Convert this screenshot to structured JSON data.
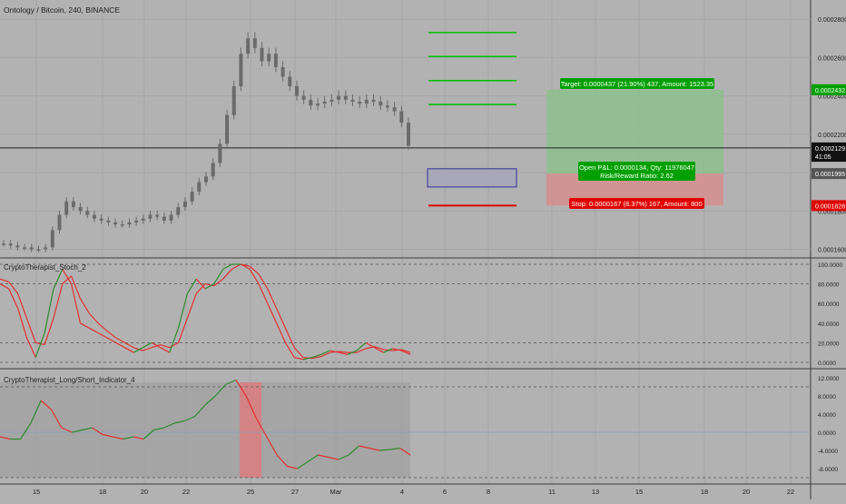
{
  "chart_title": "Ontology / Bitcoin, 240, BINANCE",
  "colors": {
    "background": "#b2b2b2",
    "grid": "#a6a6a6",
    "candle": "#6b6b6b",
    "green": "#00c000",
    "red": "#e00000",
    "stoch_green": "#2e8b2e",
    "stoch_red": "#e23030",
    "target_zone": "#8fbf8f",
    "stop_zone": "#d49090"
  },
  "price_axis": {
    "min": 0.000156,
    "max": 0.00029,
    "ticks": [
      "0.0002800",
      "0.0002600",
      "0.0002400",
      "0.0002200",
      "0.0002000",
      "0.0001800",
      "0.0001600"
    ],
    "tick_values": [
      0.00028,
      0.00026,
      0.00024,
      0.00022,
      0.0002,
      0.00018,
      0.00016
    ],
    "tags": [
      {
        "label": "0.0002432",
        "value": 0.0002432,
        "bg": "#00a000"
      },
      {
        "label": "0.0002129",
        "value": 0.0002129,
        "bg": "#111111"
      },
      {
        "label": "41:05",
        "value": 0.0002085,
        "bg": "#111111"
      },
      {
        "label": "0.0001995",
        "value": 0.0001995,
        "bg": "#555555"
      },
      {
        "label": "0.0001828",
        "value": 0.0001828,
        "bg": "#e00000"
      }
    ]
  },
  "x_axis": {
    "labels": [
      "15",
      "18",
      "20",
      "22",
      "25",
      "27",
      "Mar",
      "4",
      "6",
      "8",
      "11",
      "13",
      "15",
      "18",
      "20",
      "22"
    ]
  },
  "long_position": {
    "target_label": "Target: 0.0000437 (21.90%) 437, Amount: 1523.35",
    "pnl_label_line1": "Open P&L: 0.0000134, Qty: 11976047",
    "pnl_label_line2": "Risk/Reward Ratio: 2.62",
    "stop_label": "Stop: 0.0000167 (8.37%) 167, Amount: 800",
    "entry": 0.0001995,
    "target": 0.0002432,
    "stop": 0.0001828
  },
  "green_levels": [
    0.000273,
    0.0002605,
    0.000248,
    0.0002355
  ],
  "red_level": 0.0001828,
  "blue_box": {
    "top": 0.000202,
    "bottom": 0.0001925
  },
  "current_price": 0.0002129,
  "candles": [
    0.000163,
    0.000162,
    0.000161,
    0.000161,
    0.00016,
    0.00016,
    0.000161,
    0.00017,
    0.000178,
    0.000185,
    0.000182,
    0.00018,
    0.000178,
    0.000176,
    0.000175,
    0.000174,
    0.000173,
    0.000173,
    0.000174,
    0.000175,
    0.000176,
    0.000178,
    0.000177,
    0.000175,
    0.000178,
    0.000182,
    0.000185,
    0.00019,
    0.000195,
    0.000198,
    0.000205,
    0.000215,
    0.00023,
    0.000245,
    0.000262,
    0.00027,
    0.000265,
    0.000258,
    0.000262,
    0.000255,
    0.00025,
    0.000245,
    0.00024,
    0.000238,
    0.000235,
    0.000236,
    0.000237,
    0.000238,
    0.00024,
    0.000238,
    0.000237,
    0.000236,
    0.000238,
    0.000237,
    0.000235,
    0.000234,
    0.000232,
    0.000226,
    0.000214
  ],
  "stoch_panel": {
    "title": "CryptoTherapist_Stoch_2",
    "ticks": [
      "100.0000",
      "80.0000",
      "60.0000",
      "40.0000",
      "20.0000",
      "0.0000"
    ],
    "tick_values": [
      100,
      80,
      60,
      40,
      20,
      0
    ],
    "dashed": [
      100,
      80,
      20,
      0
    ],
    "k": [
      80,
      75,
      55,
      25,
      5,
      30,
      75,
      95,
      80,
      40,
      35,
      30,
      25,
      20,
      15,
      10,
      15,
      20,
      15,
      10,
      35,
      70,
      85,
      75,
      80,
      95,
      100,
      100,
      95,
      80,
      60,
      40,
      20,
      5,
      3,
      5,
      8,
      12,
      10,
      8,
      12,
      20,
      15,
      10,
      14,
      12,
      8
    ],
    "d": [
      85,
      82,
      70,
      45,
      20,
      18,
      45,
      80,
      88,
      65,
      50,
      40,
      32,
      25,
      20,
      15,
      12,
      15,
      18,
      15,
      20,
      45,
      70,
      80,
      78,
      85,
      95,
      100,
      98,
      90,
      75,
      55,
      35,
      15,
      5,
      4,
      6,
      10,
      11,
      10,
      10,
      14,
      16,
      13,
      12,
      13,
      10
    ]
  },
  "ls_panel": {
    "title": "CryptoTherapist_Long/Short_Indicator_4",
    "ticks": [
      "12.0000",
      "8.0000",
      "4.0000",
      "0.0000",
      "-4.0000",
      "-8.0000"
    ],
    "tick_values": [
      12,
      8,
      4,
      0,
      -4,
      -8
    ],
    "dashed": [
      10,
      -10
    ],
    "line": [
      -1.0,
      -1.5,
      -1.5,
      2,
      7,
      5,
      1,
      0,
      0.5,
      1,
      -0.5,
      -1,
      -1.5,
      -1,
      -1.5,
      0.5,
      1,
      2,
      2.5,
      3.5,
      6,
      8,
      10.5,
      11.5,
      8,
      3,
      -1,
      -5,
      -7.5,
      -8,
      -6.5,
      -5,
      -5.5,
      -6,
      -5,
      -3,
      -3.5,
      -4,
      -3.8,
      -3.5,
      -5
    ],
    "red_bar_x": [
      0.56,
      0.61
    ]
  }
}
